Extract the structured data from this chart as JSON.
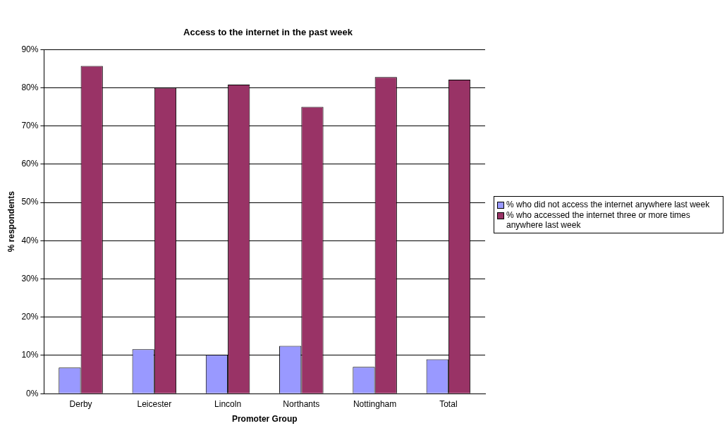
{
  "chart_data": {
    "type": "bar",
    "title": "Access to the internet in the past week",
    "xlabel": "Promoter Group",
    "ylabel": "% respondents",
    "categories": [
      "Derby",
      "Leicester",
      "Lincoln",
      "Northants",
      "Nottingham",
      "Total"
    ],
    "series": [
      {
        "name": "% who did not access the internet anywhere last week",
        "color": "#9999ff",
        "values": [
          6.8,
          11.6,
          10.2,
          12.5,
          7.0,
          9.0
        ]
      },
      {
        "name": "% who accessed the internet three or more times anywhere last week",
        "color": "#993366",
        "values": [
          85.7,
          80.0,
          80.8,
          75.0,
          82.8,
          82.1
        ]
      }
    ],
    "ylim": [
      0,
      90
    ],
    "yticks": [
      {
        "value": 0,
        "label": "0%"
      },
      {
        "value": 10,
        "label": "10%"
      },
      {
        "value": 20,
        "label": "20%"
      },
      {
        "value": 30,
        "label": "30%"
      },
      {
        "value": 40,
        "label": "40%"
      },
      {
        "value": 50,
        "label": "50%"
      },
      {
        "value": 60,
        "label": "60%"
      },
      {
        "value": 70,
        "label": "70%"
      },
      {
        "value": 80,
        "label": "80%"
      },
      {
        "value": 90,
        "label": "90%"
      }
    ],
    "grid": "y",
    "legend": "right"
  }
}
